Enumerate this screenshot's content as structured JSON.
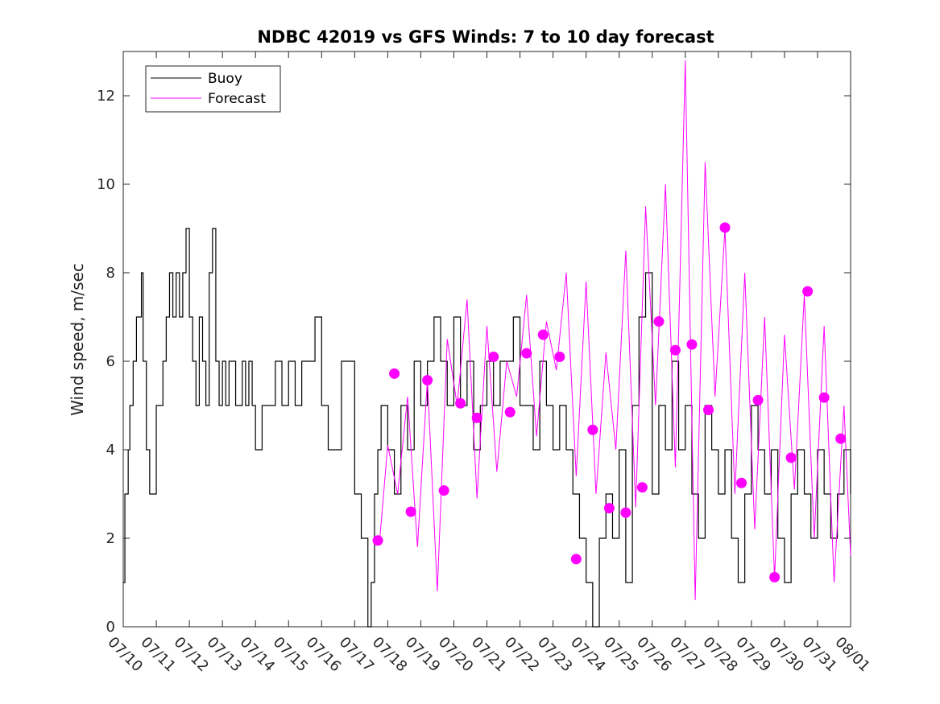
{
  "chart_data": {
    "type": "line",
    "title": "NDBC 42019 vs GFS Winds: 7 to 10 day forecast",
    "xlabel": "",
    "ylabel": "Wind speed, m/sec",
    "x_tick_labels": [
      "07/10",
      "07/11",
      "07/12",
      "07/13",
      "07/14",
      "07/15",
      "07/16",
      "07/17",
      "07/18",
      "07/19",
      "07/20",
      "07/21",
      "07/22",
      "07/23",
      "07/24",
      "07/25",
      "07/26",
      "07/27",
      "07/28",
      "07/29",
      "07/30",
      "07/31",
      "08/01"
    ],
    "xlim_days": [
      0,
      22
    ],
    "ylim": [
      0,
      13
    ],
    "y_ticks": [
      0,
      2,
      4,
      6,
      8,
      10,
      12
    ],
    "grid": false,
    "legend": {
      "position": "top-left",
      "entries": [
        "Buoy",
        "Forecast"
      ]
    },
    "colors": {
      "buoy": "#000000",
      "forecast": "#ff00ff"
    },
    "series": [
      {
        "name": "Buoy",
        "x": [
          0.0,
          0.05,
          0.1,
          0.15,
          0.2,
          0.3,
          0.4,
          0.5,
          0.55,
          0.6,
          0.7,
          0.8,
          0.9,
          1.0,
          1.1,
          1.2,
          1.3,
          1.4,
          1.5,
          1.6,
          1.7,
          1.8,
          1.9,
          2.0,
          2.1,
          2.2,
          2.3,
          2.4,
          2.5,
          2.6,
          2.7,
          2.8,
          2.9,
          3.0,
          3.1,
          3.2,
          3.3,
          3.4,
          3.5,
          3.6,
          3.7,
          3.8,
          3.9,
          4.0,
          4.2,
          4.4,
          4.6,
          4.8,
          5.0,
          5.2,
          5.4,
          5.6,
          5.8,
          6.0,
          6.2,
          6.4,
          6.6,
          6.8,
          7.0,
          7.2,
          7.4,
          7.5,
          7.6,
          7.7,
          7.8,
          8.0,
          8.2,
          8.4,
          8.6,
          8.8,
          9.0,
          9.2,
          9.4,
          9.6,
          9.8,
          10.0,
          10.2,
          10.4,
          10.6,
          10.8,
          11.0,
          11.2,
          11.4,
          11.6,
          11.8,
          12.0,
          12.2,
          12.4,
          12.6,
          12.8,
          13.0,
          13.2,
          13.4,
          13.6,
          13.8,
          14.0,
          14.2,
          14.4,
          14.6,
          14.8,
          15.0,
          15.2,
          15.4,
          15.6,
          15.8,
          16.0,
          16.2,
          16.4,
          16.6,
          16.8,
          17.0,
          17.2,
          17.4,
          17.6,
          17.8,
          18.0,
          18.2,
          18.4,
          18.6,
          18.8,
          19.0,
          19.2,
          19.4,
          19.6,
          19.8,
          20.0,
          20.2,
          20.4,
          20.6,
          20.8,
          21.0,
          21.2,
          21.4,
          21.6,
          21.8,
          22.0
        ],
        "y": [
          1,
          3,
          3,
          4,
          5,
          6,
          7,
          7,
          8,
          6,
          4,
          3,
          3,
          5,
          5,
          6,
          7,
          8,
          7,
          8,
          7,
          8,
          9,
          7,
          6,
          5,
          7,
          6,
          5,
          8,
          9,
          6,
          5,
          6,
          5,
          6,
          6,
          5,
          5,
          6,
          5,
          6,
          5,
          4,
          5,
          5,
          6,
          5,
          6,
          5,
          6,
          6,
          7,
          5,
          4,
          4,
          6,
          6,
          3,
          2,
          0,
          1,
          3,
          4,
          5,
          4,
          3,
          5,
          4,
          6,
          5,
          6,
          7,
          6,
          5,
          7,
          5,
          6,
          4,
          5,
          6,
          5,
          6,
          6,
          7,
          5,
          5,
          4,
          6,
          5,
          4,
          5,
          4,
          3,
          2,
          1,
          0,
          2,
          3,
          2,
          4,
          1,
          5,
          7,
          8,
          3,
          5,
          4,
          6,
          4,
          5,
          3,
          2,
          5,
          4,
          3,
          4,
          2,
          1,
          3,
          5,
          4,
          3,
          4,
          2,
          1,
          3,
          4,
          3,
          2,
          4,
          3,
          2,
          3,
          4,
          3
        ]
      },
      {
        "name": "Forecast",
        "x": [
          7.75,
          8.0,
          8.3,
          8.6,
          8.9,
          9.2,
          9.5,
          9.8,
          10.1,
          10.4,
          10.7,
          11.0,
          11.3,
          11.6,
          11.9,
          12.2,
          12.5,
          12.8,
          13.1,
          13.4,
          13.7,
          14.0,
          14.3,
          14.6,
          14.9,
          15.2,
          15.5,
          15.8,
          16.1,
          16.4,
          16.7,
          17.0,
          17.3,
          17.6,
          17.9,
          18.2,
          18.5,
          18.8,
          19.1,
          19.4,
          19.7,
          20.0,
          20.3,
          20.6,
          20.9,
          21.2,
          21.5,
          21.8,
          22.0
        ],
        "y": [
          1.9,
          4.1,
          3.0,
          5.2,
          1.8,
          5.6,
          0.8,
          6.5,
          5.0,
          7.4,
          2.9,
          6.8,
          3.5,
          6.0,
          5.2,
          7.5,
          4.3,
          6.9,
          5.8,
          8.0,
          3.4,
          7.8,
          3.0,
          6.2,
          4.0,
          8.5,
          2.7,
          9.5,
          5.0,
          10.0,
          3.6,
          12.8,
          0.6,
          10.5,
          5.2,
          9.0,
          3.0,
          8.0,
          2.2,
          7.0,
          1.1,
          6.6,
          3.1,
          7.5,
          2.0,
          6.8,
          1.0,
          5.0,
          1.6
        ]
      }
    ],
    "markers": {
      "name": "Forecast",
      "x": [
        7.7,
        8.2,
        8.7,
        9.2,
        9.7,
        10.2,
        10.7,
        11.2,
        11.7,
        12.2,
        12.7,
        13.2,
        13.7,
        14.2,
        14.7,
        15.2,
        15.7,
        16.2,
        16.7,
        17.2,
        17.7,
        18.2,
        18.7,
        19.2,
        19.7,
        20.2,
        20.7,
        21.2,
        21.7
      ],
      "y": [
        1.95,
        5.72,
        2.6,
        5.57,
        3.08,
        5.05,
        4.72,
        6.1,
        4.85,
        6.18,
        6.6,
        6.1,
        1.53,
        4.45,
        2.68,
        2.58,
        3.15,
        6.9,
        6.25,
        6.38,
        4.9,
        9.02,
        3.25,
        5.12,
        1.12,
        3.82,
        7.58,
        5.18,
        4.25
      ]
    }
  }
}
